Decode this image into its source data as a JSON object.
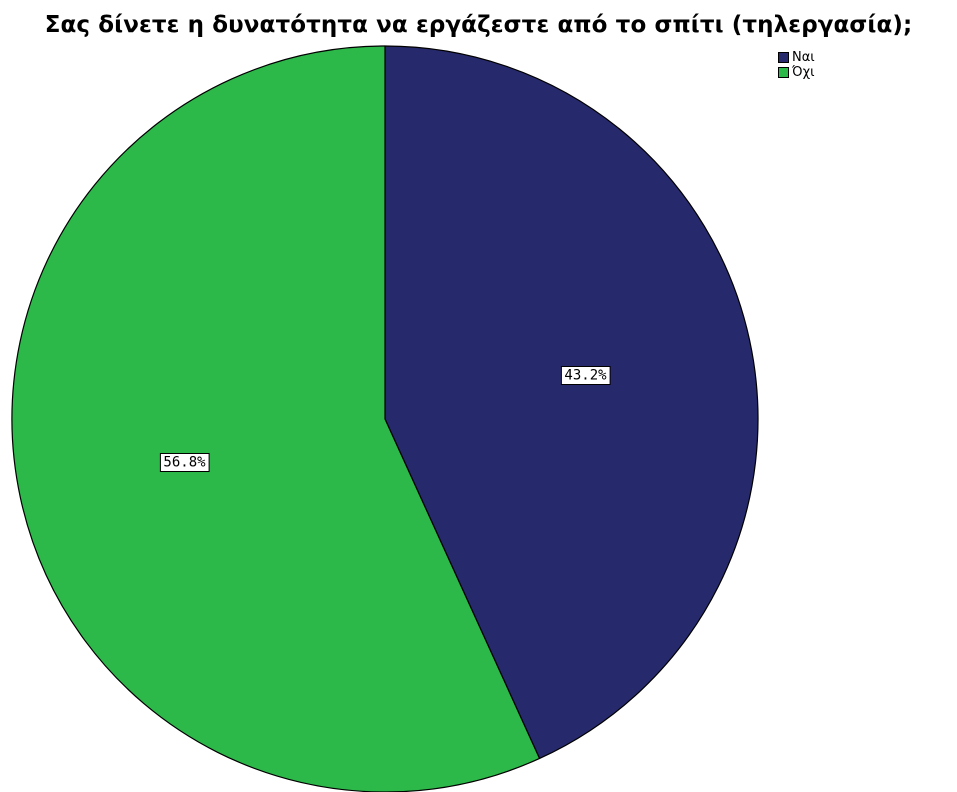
{
  "chart_data": {
    "type": "pie",
    "title": "Σας δίνετε η δυνατότητα να εργάζεστε από το σπίτι (τηλεργασία);",
    "slices": [
      {
        "label": "Ναι",
        "value": 43.2,
        "display": "43.2%",
        "color": "#27296d"
      },
      {
        "label": "Όχι",
        "value": 56.8,
        "display": "56.8%",
        "color": "#2db84a"
      }
    ],
    "legend_position": "top-right",
    "start_angle": "12 o'clock",
    "direction": "clockwise"
  }
}
